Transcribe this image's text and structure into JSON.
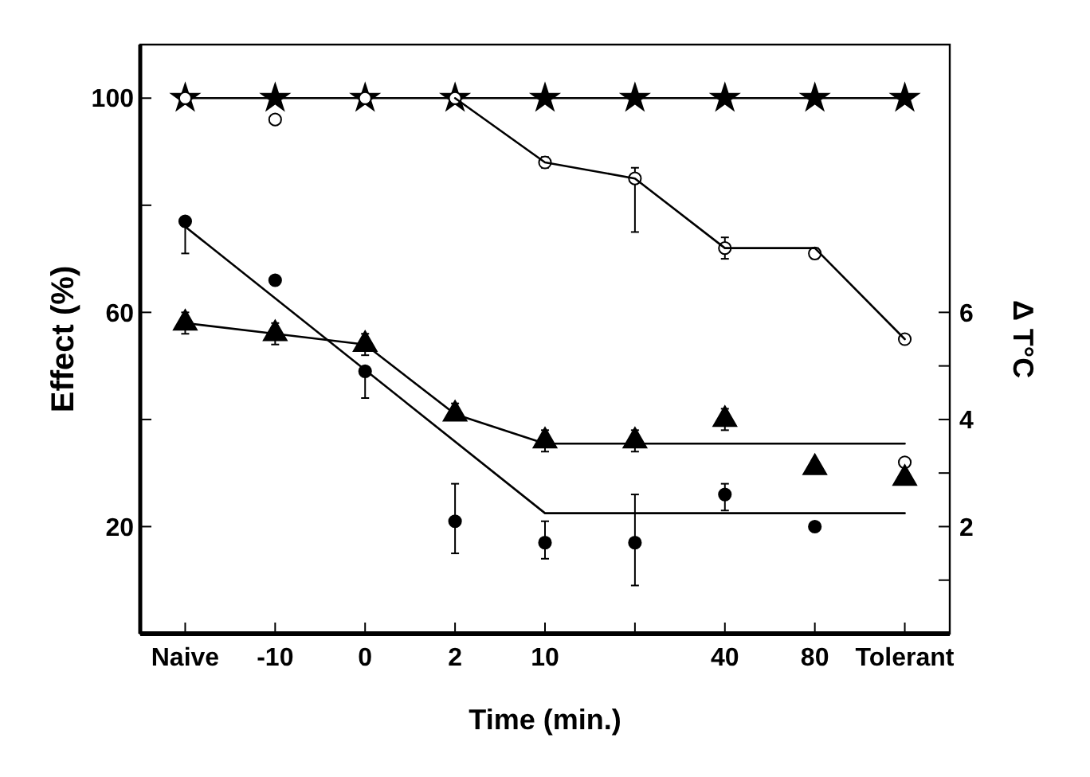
{
  "chart_data": {
    "type": "scatter",
    "xlabel": "Time  (min.)",
    "ylabel": "Effect  (%)",
    "y2label": "Δ T°C",
    "categories": [
      "Naive",
      "-10",
      "0",
      "2",
      "10",
      null,
      "40",
      "80",
      "Tolerant"
    ],
    "ylim": [
      0,
      110
    ],
    "yticks": [
      {
        "value": 0,
        "label": null
      },
      20,
      {
        "value": 40,
        "label": null
      },
      60,
      {
        "value": 80,
        "label": null
      },
      100
    ],
    "y2lim": [
      0,
      11
    ],
    "y2ticks": [
      {
        "value": 0,
        "label": null
      },
      {
        "value": 1,
        "label": null
      },
      2,
      {
        "value": 3,
        "label": null
      },
      4,
      {
        "value": 5,
        "label": null
      },
      6
    ],
    "grid": false,
    "series": [
      {
        "type": "line",
        "marker": "star",
        "line_style": "solid",
        "color": "#000000",
        "values": [
          100,
          100,
          100,
          100,
          100,
          100,
          100,
          100,
          100
        ]
      },
      {
        "marker": "circle",
        "color": "#ffffff",
        "values": [
          100,
          96,
          100,
          100,
          88,
          85,
          72,
          71,
          55
        ],
        "errors": [
          null,
          null,
          null,
          null,
          [
            87,
            89
          ],
          [
            75,
            87
          ],
          [
            70,
            74
          ],
          [
            70,
            72
          ],
          null
        ]
      },
      {
        "type": "line",
        "marker": "none",
        "line_style": "solid",
        "color": "#000000",
        "x": [
          "2",
          "10",
          null,
          "40",
          "80",
          "Tolerant"
        ],
        "values": [
          100,
          88,
          85,
          72,
          72,
          55
        ]
      },
      {
        "marker": "circle",
        "color": "#000000",
        "values": [
          77,
          66,
          49,
          21,
          17,
          17,
          26,
          20,
          null
        ],
        "errors": [
          [
            71,
            77
          ],
          null,
          [
            44,
            49
          ],
          [
            15,
            28
          ],
          [
            14,
            21
          ],
          [
            9,
            26
          ],
          [
            23,
            28
          ],
          null,
          null
        ]
      },
      {
        "type": "line",
        "marker": "none",
        "line_style": "solid",
        "color": "#000000",
        "x": [
          "Naive",
          "10",
          "Tolerant"
        ],
        "values": [
          76,
          22.5,
          22.5
        ]
      },
      {
        "marker": "circle",
        "color": "#ffffff",
        "x": [
          "Tolerant"
        ],
        "values": [
          32
        ]
      },
      {
        "marker": "triangle",
        "axis": "y2",
        "color": "#000000",
        "values": [
          5.8,
          5.6,
          5.4,
          4.1,
          3.6,
          3.6,
          4.0,
          3.1,
          2.9
        ],
        "errors": [
          [
            5.6,
            6.0
          ],
          [
            5.4,
            5.8
          ],
          [
            5.2,
            5.6
          ],
          [
            4.0,
            4.3
          ],
          [
            3.4,
            3.8
          ],
          [
            3.4,
            3.8
          ],
          [
            3.8,
            4.2
          ],
          [
            3.0,
            3.2
          ],
          null
        ]
      },
      {
        "type": "line",
        "marker": "none",
        "axis": "y2",
        "line_style": "solid",
        "color": "#000000",
        "x": [
          "Naive",
          "-10",
          "0",
          "2",
          "10",
          "Tolerant"
        ],
        "values": [
          5.8,
          5.6,
          5.4,
          4.1,
          3.55,
          3.55
        ]
      }
    ]
  }
}
